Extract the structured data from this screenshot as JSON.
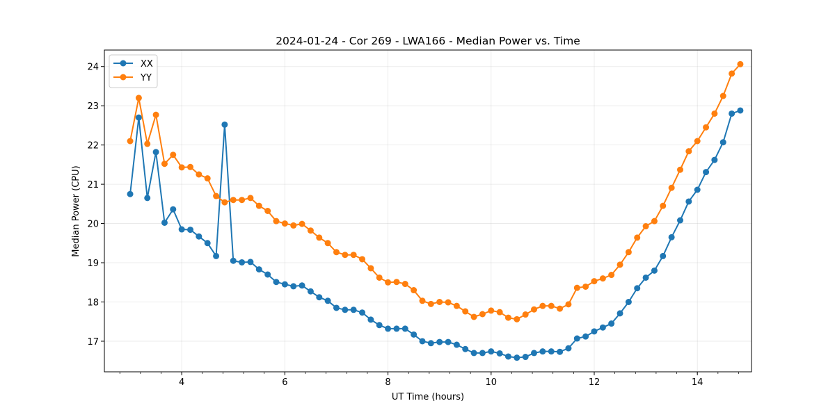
{
  "chart_data": {
    "type": "line",
    "title": "2024-01-24 - Cor 269 - LWA166 - Median Power vs. Time",
    "xlabel": "UT Time (hours)",
    "ylabel": "Median Power (CPU)",
    "xlim": [
      2.5,
      15.05
    ],
    "ylim": [
      16.22,
      24.42
    ],
    "xticks": [
      4,
      6,
      8,
      10,
      12,
      14
    ],
    "xtick_labels": [
      "4",
      "6",
      "8",
      "10",
      "12",
      "14"
    ],
    "x_minor_step": 0.4,
    "yticks": [
      17,
      18,
      19,
      20,
      21,
      22,
      23,
      24
    ],
    "ytick_labels": [
      "17",
      "18",
      "19",
      "20",
      "21",
      "22",
      "23",
      "24"
    ],
    "grid": true,
    "legend_position": "top-left",
    "x": [
      3.0,
      3.167,
      3.333,
      3.5,
      3.667,
      3.833,
      4.0,
      4.167,
      4.333,
      4.5,
      4.667,
      4.833,
      5.0,
      5.167,
      5.333,
      5.5,
      5.667,
      5.833,
      6.0,
      6.167,
      6.333,
      6.5,
      6.667,
      6.833,
      7.0,
      7.167,
      7.333,
      7.5,
      7.667,
      7.833,
      8.0,
      8.167,
      8.333,
      8.5,
      8.667,
      8.833,
      9.0,
      9.167,
      9.333,
      9.5,
      9.667,
      9.833,
      10.0,
      10.167,
      10.333,
      10.5,
      10.667,
      10.833,
      11.0,
      11.167,
      11.333,
      11.5,
      11.667,
      11.833,
      12.0,
      12.167,
      12.333,
      12.5,
      12.667,
      12.833,
      13.0,
      13.167,
      13.333,
      13.5,
      13.667,
      13.833,
      14.0,
      14.167,
      14.333,
      14.5,
      14.667,
      14.833
    ],
    "series": [
      {
        "name": "XX",
        "color": "#1f77b4",
        "values": [
          20.75,
          22.7,
          20.65,
          21.82,
          20.02,
          20.36,
          19.85,
          19.84,
          19.67,
          19.5,
          19.17,
          22.52,
          19.05,
          19.01,
          19.02,
          18.83,
          18.7,
          18.51,
          18.45,
          18.4,
          18.42,
          18.27,
          18.12,
          18.03,
          17.85,
          17.8,
          17.8,
          17.73,
          17.55,
          17.41,
          17.32,
          17.32,
          17.32,
          17.17,
          17.0,
          16.95,
          16.98,
          16.98,
          16.91,
          16.8,
          16.7,
          16.7,
          16.74,
          16.69,
          16.61,
          16.58,
          16.6,
          16.7,
          16.74,
          16.74,
          16.73,
          16.82,
          17.07,
          17.12,
          17.25,
          17.35,
          17.45,
          17.71,
          18.0,
          18.35,
          18.62,
          18.8,
          19.17,
          19.65,
          20.08,
          20.56,
          20.86,
          21.31,
          21.62,
          22.07,
          22.8,
          22.88
        ]
      },
      {
        "name": "YY",
        "color": "#ff7f0e",
        "values": [
          22.1,
          23.2,
          22.03,
          22.77,
          21.52,
          21.75,
          21.43,
          21.44,
          21.25,
          21.15,
          20.7,
          20.54,
          20.6,
          20.6,
          20.65,
          20.45,
          20.32,
          20.06,
          20.0,
          19.95,
          19.99,
          19.82,
          19.64,
          19.5,
          19.27,
          19.2,
          19.2,
          19.09,
          18.86,
          18.62,
          18.5,
          18.51,
          18.46,
          18.3,
          18.03,
          17.95,
          18.0,
          17.99,
          17.9,
          17.76,
          17.62,
          17.69,
          17.78,
          17.74,
          17.6,
          17.56,
          17.68,
          17.81,
          17.9,
          17.9,
          17.83,
          17.94,
          18.36,
          18.39,
          18.53,
          18.6,
          18.69,
          18.95,
          19.27,
          19.64,
          19.93,
          20.06,
          20.45,
          20.91,
          21.37,
          21.84,
          22.1,
          22.45,
          22.8,
          23.25,
          23.82,
          24.06
        ]
      }
    ]
  }
}
